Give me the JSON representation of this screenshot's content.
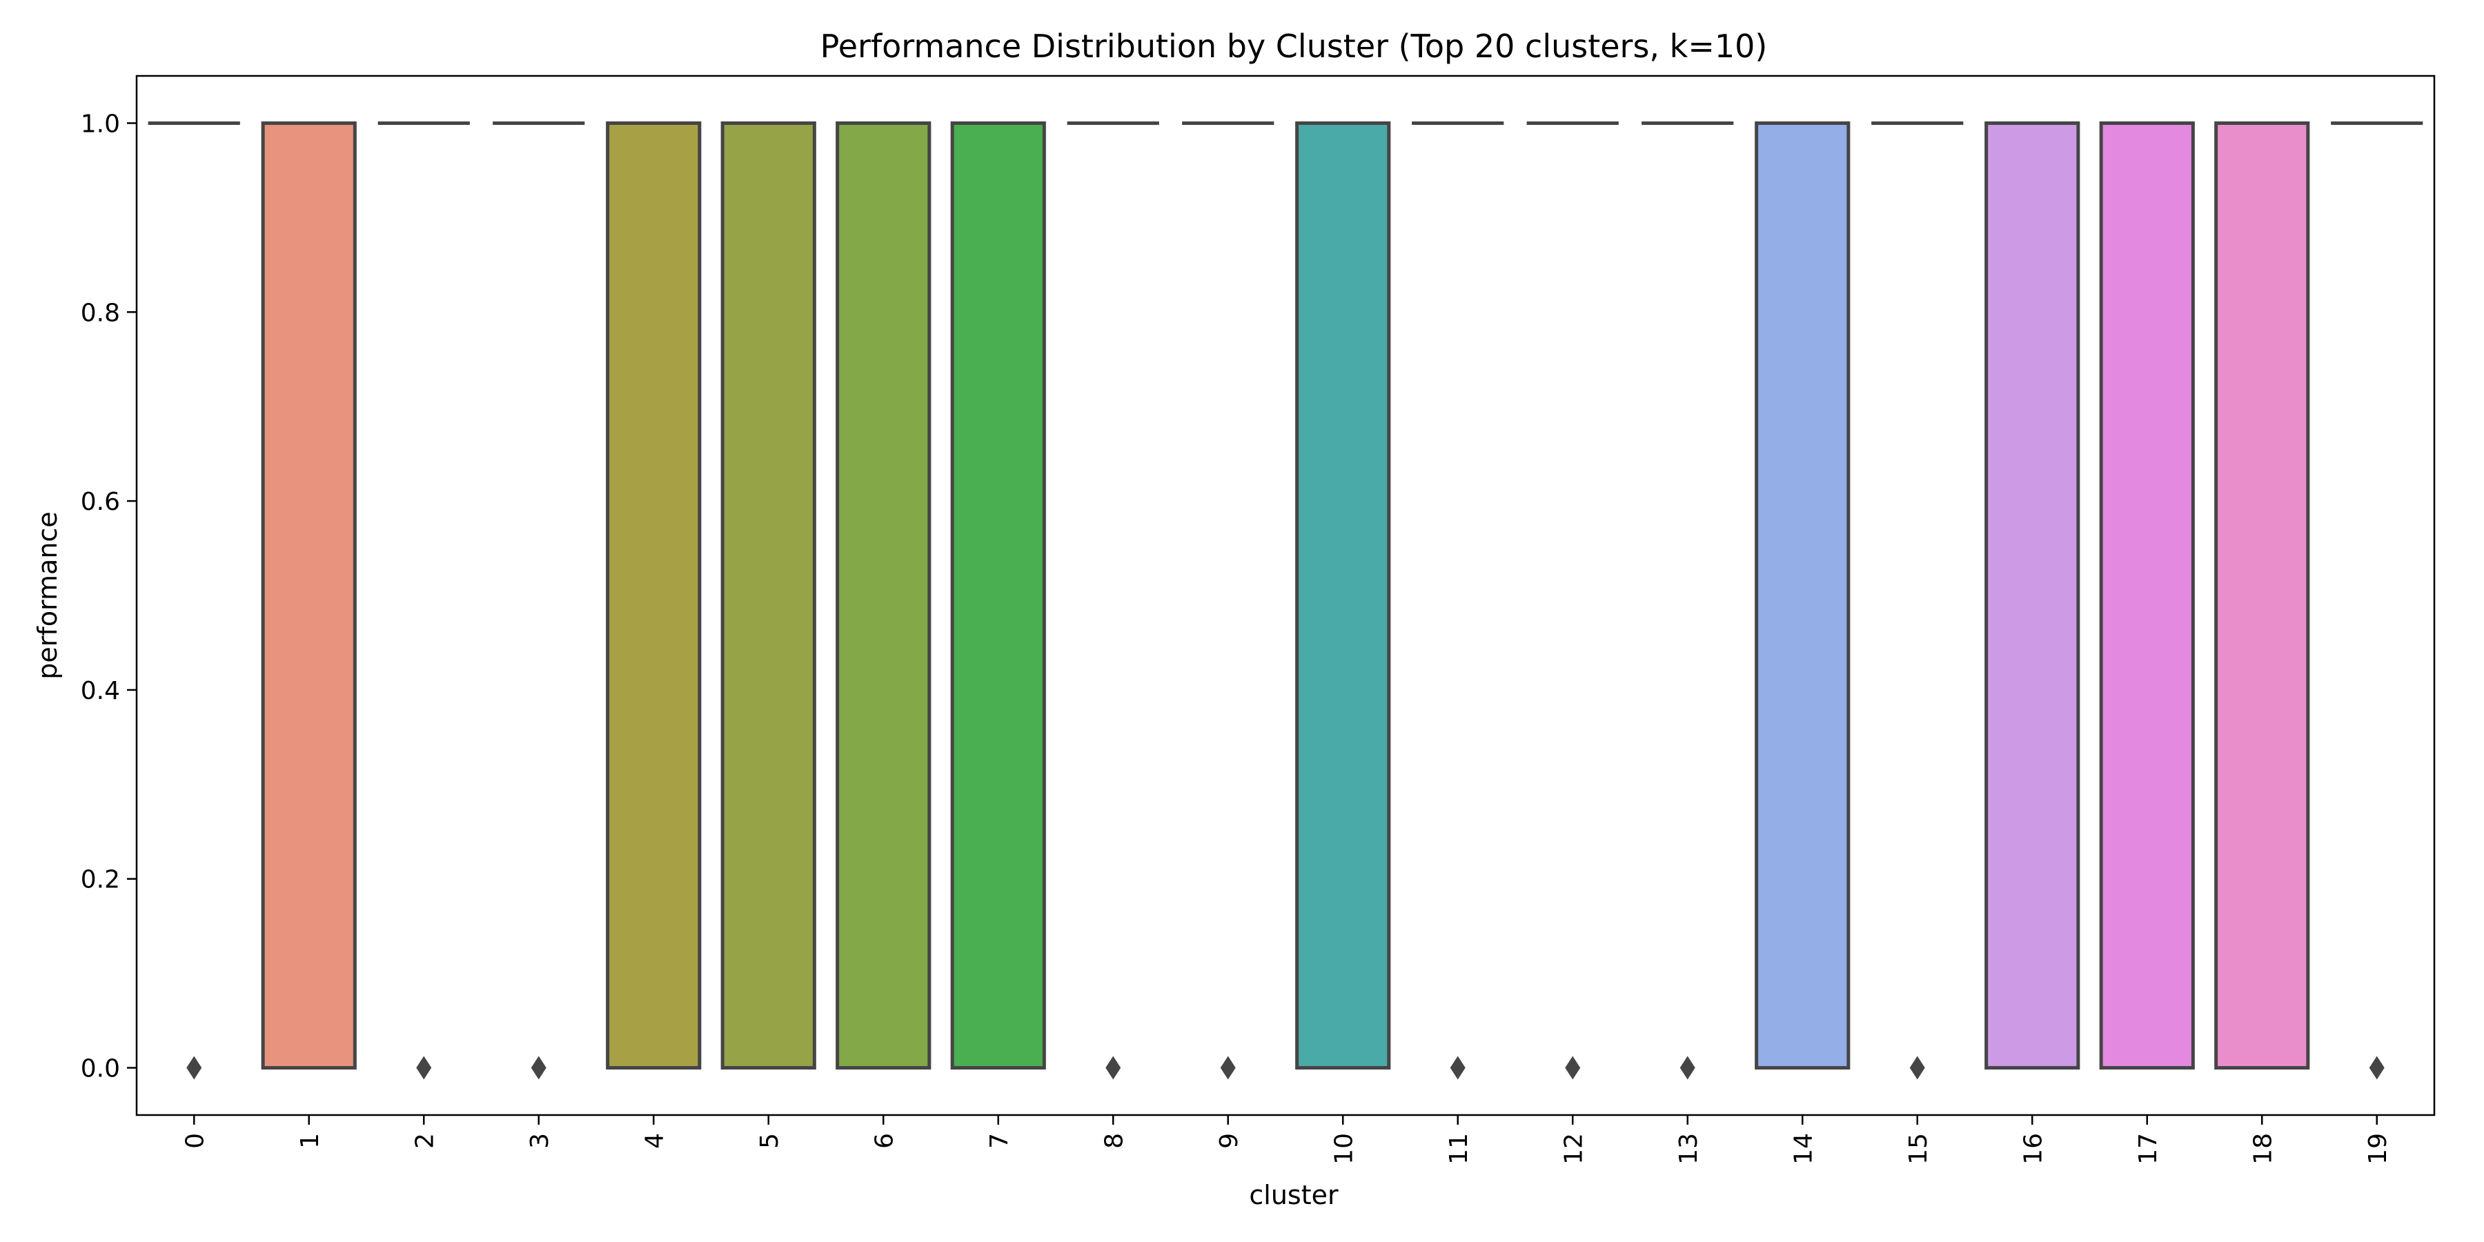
{
  "chart_data": {
    "type": "box",
    "title": "Performance Distribution by Cluster (Top 20 clusters, k=10)",
    "xlabel": "cluster",
    "ylabel": "performance",
    "categories": [
      "0",
      "1",
      "2",
      "3",
      "4",
      "5",
      "6",
      "7",
      "8",
      "9",
      "10",
      "11",
      "12",
      "13",
      "14",
      "15",
      "16",
      "17",
      "18",
      "19"
    ],
    "boxes": [
      {
        "cluster": "0",
        "q1": 1,
        "median": 1,
        "q3": 1,
        "outliers": [
          0
        ]
      },
      {
        "cluster": "1",
        "q1": 0,
        "median": 1,
        "q3": 1,
        "outliers": []
      },
      {
        "cluster": "2",
        "q1": 1,
        "median": 1,
        "q3": 1,
        "outliers": [
          0
        ]
      },
      {
        "cluster": "3",
        "q1": 1,
        "median": 1,
        "q3": 1,
        "outliers": [
          0
        ]
      },
      {
        "cluster": "4",
        "q1": 0,
        "median": 1,
        "q3": 1,
        "outliers": []
      },
      {
        "cluster": "5",
        "q1": 0,
        "median": 1,
        "q3": 1,
        "outliers": []
      },
      {
        "cluster": "6",
        "q1": 0,
        "median": 1,
        "q3": 1,
        "outliers": []
      },
      {
        "cluster": "7",
        "q1": 0,
        "median": 1,
        "q3": 1,
        "outliers": []
      },
      {
        "cluster": "8",
        "q1": 1,
        "median": 1,
        "q3": 1,
        "outliers": [
          0
        ]
      },
      {
        "cluster": "9",
        "q1": 1,
        "median": 1,
        "q3": 1,
        "outliers": [
          0
        ]
      },
      {
        "cluster": "10",
        "q1": 0,
        "median": 1,
        "q3": 1,
        "outliers": []
      },
      {
        "cluster": "11",
        "q1": 1,
        "median": 1,
        "q3": 1,
        "outliers": [
          0
        ]
      },
      {
        "cluster": "12",
        "q1": 1,
        "median": 1,
        "q3": 1,
        "outliers": [
          0
        ]
      },
      {
        "cluster": "13",
        "q1": 1,
        "median": 1,
        "q3": 1,
        "outliers": [
          0
        ]
      },
      {
        "cluster": "14",
        "q1": 0,
        "median": 1,
        "q3": 1,
        "outliers": []
      },
      {
        "cluster": "15",
        "q1": 1,
        "median": 1,
        "q3": 1,
        "outliers": [
          0
        ]
      },
      {
        "cluster": "16",
        "q1": 0,
        "median": 1,
        "q3": 1,
        "outliers": []
      },
      {
        "cluster": "17",
        "q1": 0,
        "median": 1,
        "q3": 1,
        "outliers": []
      },
      {
        "cluster": "18",
        "q1": 0,
        "median": 1,
        "q3": 1,
        "outliers": []
      },
      {
        "cluster": "19",
        "q1": 1,
        "median": 1,
        "q3": 1,
        "outliers": [
          0
        ]
      }
    ],
    "colors": [
      "#f77189",
      "#e8937e",
      "#d3994b",
      "#b5a14a",
      "#a8a045",
      "#97a347",
      "#82a847",
      "#4aaf51",
      "#4dae82",
      "#4ca8a0",
      "#4aaaa7",
      "#4eaab9",
      "#56a9c8",
      "#61a7d9",
      "#94aee8",
      "#b7a2ee",
      "#cd9ae6",
      "#e389e0",
      "#ea8ecb",
      "#f58bb2"
    ],
    "yticks": [
      "0.0",
      "0.2",
      "0.4",
      "0.6",
      "0.8",
      "1.0"
    ],
    "ylim": [
      -0.05,
      1.05
    ],
    "grid": false,
    "legend": "none"
  }
}
